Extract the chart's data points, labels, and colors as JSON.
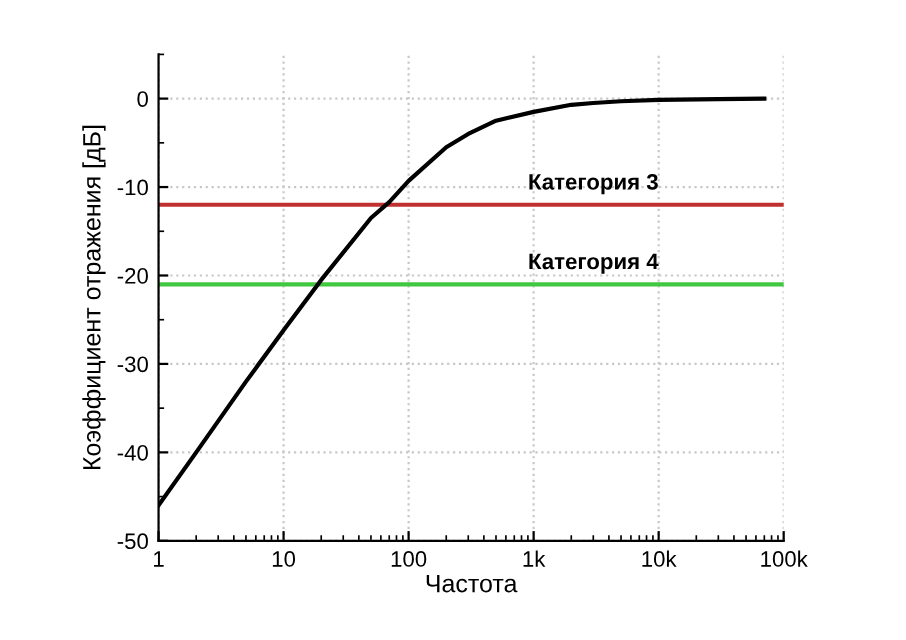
{
  "chart_data": {
    "type": "line",
    "xlabel": "Частота",
    "ylabel": "Коэффициент отражения [дБ]",
    "log": "x",
    "x": [
      1,
      2,
      5,
      10,
      20,
      50,
      70,
      100,
      200,
      300,
      500,
      1000,
      2000,
      3000,
      5000,
      10000,
      30000,
      70000
    ],
    "series": [
      {
        "color": "#000000",
        "values": [
          -46,
          -40,
          -32,
          -26.2,
          -20.5,
          -13.5,
          -11.7,
          -9.3,
          -5.5,
          -4,
          -2.5,
          -1.5,
          -0.7,
          -0.5,
          -0.3,
          -0.15,
          -0.05,
          0
        ]
      }
    ],
    "xlim": [
      1,
      100000
    ],
    "ylim": [
      -50,
      5
    ],
    "xticks": [
      1,
      10,
      100,
      {
        "value": 1000,
        "label": "1k"
      },
      {
        "value": 10000,
        "label": "10k"
      },
      {
        "value": 100000,
        "label": "100k"
      }
    ],
    "yticks": [
      -50,
      -40,
      -30,
      -20,
      -10,
      0
    ],
    "grid": true,
    "marker": "none",
    "line_style": "solid",
    "legend": false,
    "ref_lines": [
      {
        "axis": "y",
        "value": -12,
        "label": "Категория 3",
        "color": "#c03030"
      },
      {
        "axis": "y",
        "value": -21,
        "label": "Категория 4",
        "color": "#40c840"
      }
    ]
  }
}
